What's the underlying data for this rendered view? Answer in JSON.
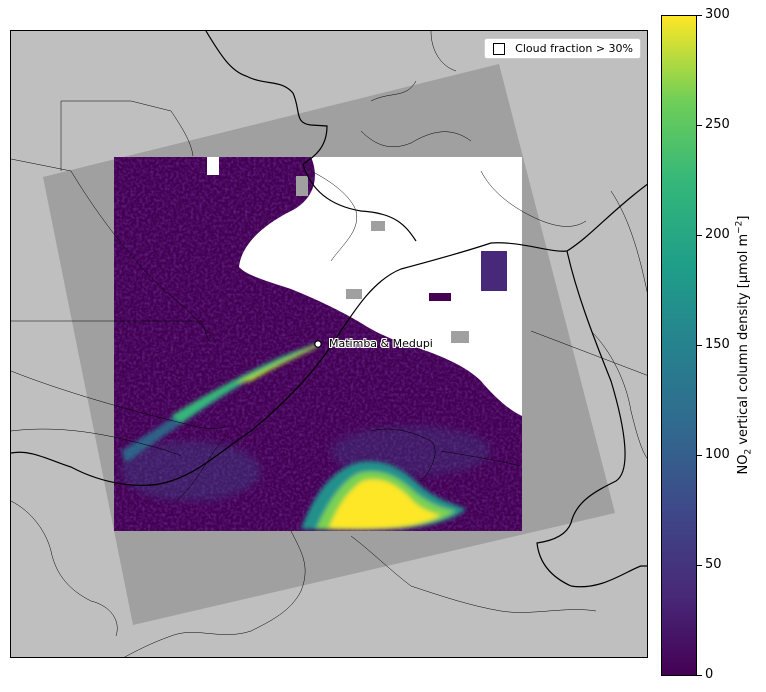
{
  "map": {
    "legend": {
      "label": "Cloud fraction > 30%",
      "swatch_color": "#ffffff"
    },
    "site": {
      "label": "Matimba & Medupi",
      "marker_color": "#ffffff"
    },
    "colors": {
      "land": "#bfbfbf",
      "swath": "#a0a0a0",
      "cloud": "#ffffff",
      "missing": "#a0a0a0",
      "borders": "#000000"
    }
  },
  "colorbar": {
    "title_prefix": "NO",
    "title_sub": "2",
    "title_rest": " vertical column density [µmol m",
    "title_sup": "−2",
    "title_end": "]",
    "colormap": "viridis",
    "min": 0,
    "max": 300,
    "ticks": [
      "0",
      "50",
      "100",
      "150",
      "200",
      "250",
      "300"
    ]
  }
}
